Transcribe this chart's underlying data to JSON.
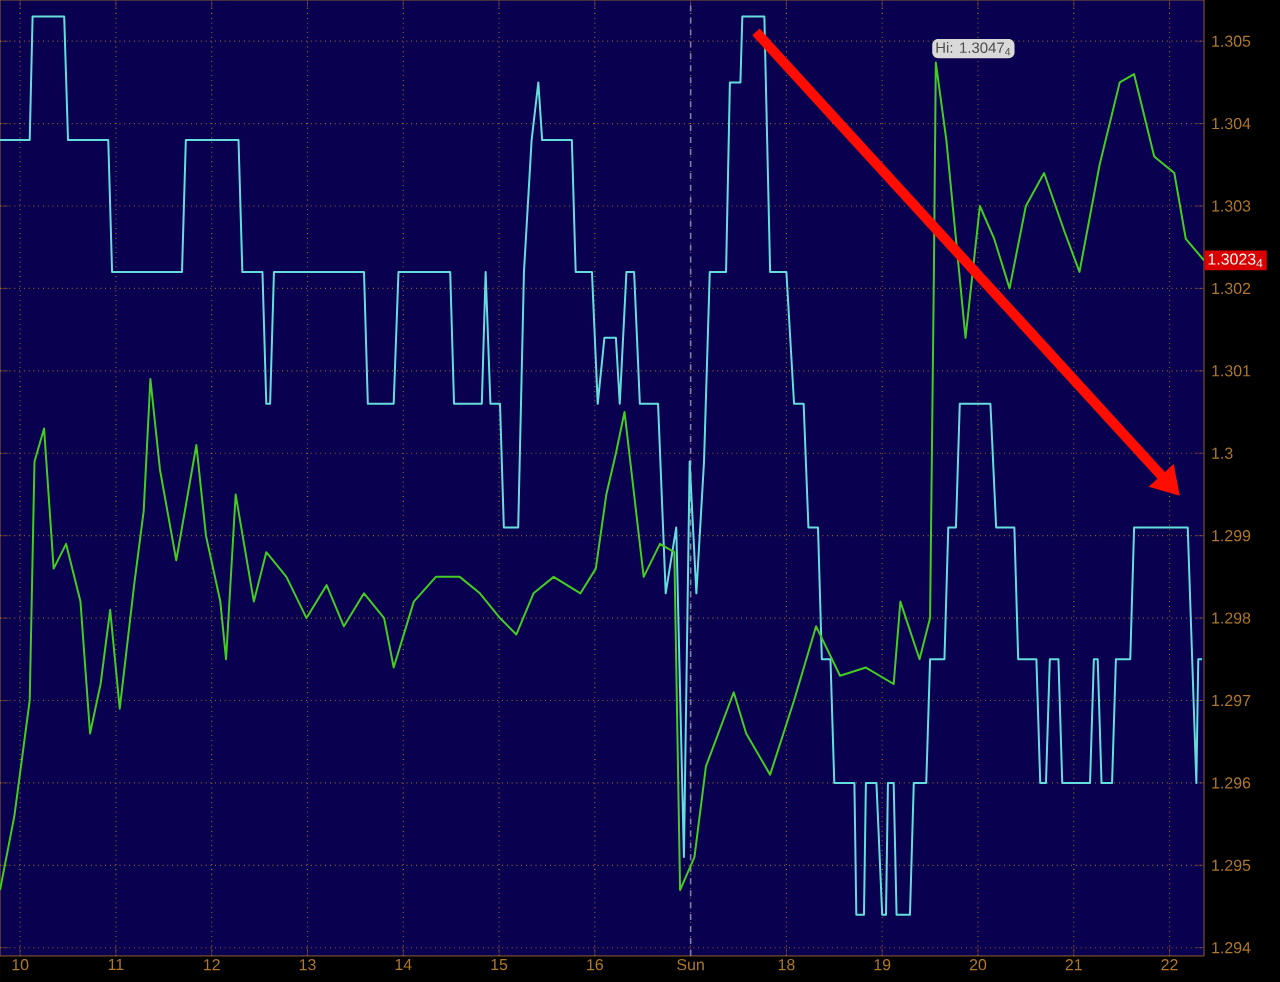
{
  "chart_data": {
    "type": "line",
    "xlim": [
      9.79,
      22.36
    ],
    "ylim": [
      1.2939,
      1.3055
    ],
    "xticks": [
      10,
      11,
      12,
      13,
      14,
      15,
      16,
      {
        "value": 17,
        "label": "Sun"
      },
      18,
      19,
      20,
      21,
      22
    ],
    "yticks": [
      1.294,
      1.295,
      1.296,
      1.297,
      1.298,
      1.299,
      {
        "value": 1.3,
        "label": "1.3"
      },
      1.301,
      1.302,
      1.303,
      1.304,
      1.305
    ],
    "grid": true,
    "ref_lines": [
      {
        "axis": "x",
        "value": 17,
        "color": "#8080a0",
        "line_style": "dashed"
      }
    ],
    "annotations": [
      {
        "text": "Hi: 1.3047$_{4}$",
        "x": 19.56,
        "y": 1.30474
      },
      {
        "text": "1.3023$_{4}$",
        "x": 22.36,
        "y": 1.30234
      }
    ],
    "series": [
      {
        "color": "#44cc22",
        "x": [
          9.79,
          9.94,
          10.1,
          10.15,
          10.25,
          10.35,
          10.48,
          10.63,
          10.73,
          10.84,
          10.94,
          11.04,
          11.19,
          11.29,
          11.36,
          11.46,
          11.63,
          11.84,
          11.94,
          12.09,
          12.15,
          12.25,
          12.44,
          12.57,
          12.78,
          12.99,
          13.2,
          13.38,
          13.59,
          13.8,
          13.9,
          14.11,
          14.34,
          14.59,
          14.8,
          15.01,
          15.18,
          15.36,
          15.57,
          15.85,
          16.01,
          16.12,
          16.22,
          16.31,
          16.41,
          16.51,
          16.68,
          16.83,
          16.89,
          17.04,
          17.16,
          17.45,
          17.58,
          17.83,
          18.08,
          18.31,
          18.56,
          18.83,
          19.12,
          19.19,
          19.39,
          19.5,
          19.54,
          19.56,
          19.67,
          19.77,
          19.87,
          20.02,
          20.17,
          20.33,
          20.5,
          20.69,
          20.9,
          21.06,
          21.27,
          21.48,
          21.63,
          21.84,
          22.05,
          22.17,
          22.36
        ],
        "values": [
          1.2947,
          1.2956,
          1.297,
          1.2999,
          1.3003,
          1.2986,
          1.2989,
          1.2982,
          1.2966,
          1.2972,
          1.2981,
          1.2969,
          1.2984,
          1.2993,
          1.3009,
          1.2998,
          1.2987,
          1.3001,
          1.299,
          1.2982,
          1.2975,
          1.2995,
          1.2982,
          1.2988,
          1.2985,
          1.298,
          1.2984,
          1.2979,
          1.2983,
          1.298,
          1.2974,
          1.2982,
          1.2985,
          1.2985,
          1.2983,
          1.298,
          1.2978,
          1.2983,
          1.2985,
          1.2983,
          1.2986,
          1.2995,
          1.3,
          1.3005,
          1.2995,
          1.2985,
          1.2989,
          1.2988,
          1.2947,
          1.2951,
          1.2962,
          1.2971,
          1.2966,
          1.2961,
          1.297,
          1.2979,
          1.2973,
          1.2974,
          1.2972,
          1.2982,
          1.2975,
          1.298,
          1.3022,
          1.30474,
          1.3038,
          1.3026,
          1.3014,
          1.303,
          1.3026,
          1.302,
          1.303,
          1.3034,
          1.3027,
          1.3022,
          1.3035,
          1.3045,
          1.3046,
          1.3036,
          1.3034,
          1.3026,
          1.30234
        ]
      },
      {
        "color": "#66dddd",
        "x": [
          9.79,
          10.1,
          10.13,
          10.46,
          10.5,
          10.92,
          10.96,
          11.69,
          11.73,
          12.28,
          12.32,
          12.53,
          12.57,
          12.61,
          12.65,
          13.59,
          13.63,
          13.9,
          13.95,
          14.49,
          14.53,
          14.82,
          14.86,
          14.91,
          15.01,
          15.05,
          15.2,
          15.26,
          15.34,
          15.41,
          15.45,
          15.76,
          15.8,
          15.97,
          16.03,
          16.1,
          16.22,
          16.26,
          16.33,
          16.41,
          16.47,
          16.66,
          16.74,
          16.85,
          16.93,
          16.99,
          17.06,
          17.14,
          17.2,
          17.37,
          17.41,
          17.52,
          17.54,
          17.77,
          17.83,
          18.0,
          18.08,
          18.18,
          18.23,
          18.33,
          18.37,
          18.46,
          18.5,
          18.71,
          18.73,
          18.81,
          18.83,
          18.94,
          19.0,
          19.04,
          19.06,
          19.12,
          19.15,
          19.29,
          19.33,
          19.46,
          19.5,
          19.65,
          19.69,
          19.77,
          19.81,
          20.13,
          20.19,
          20.38,
          20.42,
          20.61,
          20.65,
          20.71,
          20.75,
          20.84,
          20.88,
          21.17,
          21.21,
          21.25,
          21.29,
          21.4,
          21.44,
          21.59,
          21.63,
          22.19,
          22.28,
          22.3,
          22.34
        ],
        "values": [
          1.3038,
          1.3038,
          1.3053,
          1.3053,
          1.3038,
          1.3038,
          1.3022,
          1.3022,
          1.3038,
          1.3038,
          1.3022,
          1.3022,
          1.3006,
          1.3006,
          1.3022,
          1.3022,
          1.3006,
          1.3006,
          1.3022,
          1.3022,
          1.3006,
          1.3006,
          1.3022,
          1.3006,
          1.3006,
          1.2991,
          1.2991,
          1.3022,
          1.3038,
          1.3045,
          1.3038,
          1.3038,
          1.3022,
          1.3022,
          1.3006,
          1.3014,
          1.3014,
          1.3006,
          1.3022,
          1.3022,
          1.3006,
          1.3006,
          1.2983,
          1.2991,
          1.2951,
          1.2999,
          1.2983,
          1.2999,
          1.3022,
          1.3022,
          1.3045,
          1.3045,
          1.3053,
          1.3053,
          1.3022,
          1.3022,
          1.3006,
          1.3006,
          1.2991,
          1.2991,
          1.2975,
          1.2975,
          1.296,
          1.296,
          1.2944,
          1.2944,
          1.296,
          1.296,
          1.2944,
          1.2944,
          1.296,
          1.296,
          1.2944,
          1.2944,
          1.296,
          1.296,
          1.2975,
          1.2975,
          1.2991,
          1.2991,
          1.3006,
          1.3006,
          1.2991,
          1.2991,
          1.2975,
          1.2975,
          1.296,
          1.296,
          1.2975,
          1.2975,
          1.296,
          1.296,
          1.2975,
          1.2975,
          1.296,
          1.296,
          1.2975,
          1.2975,
          1.2991,
          1.2991,
          1.296,
          1.2975,
          1.2975
        ]
      }
    ]
  }
}
